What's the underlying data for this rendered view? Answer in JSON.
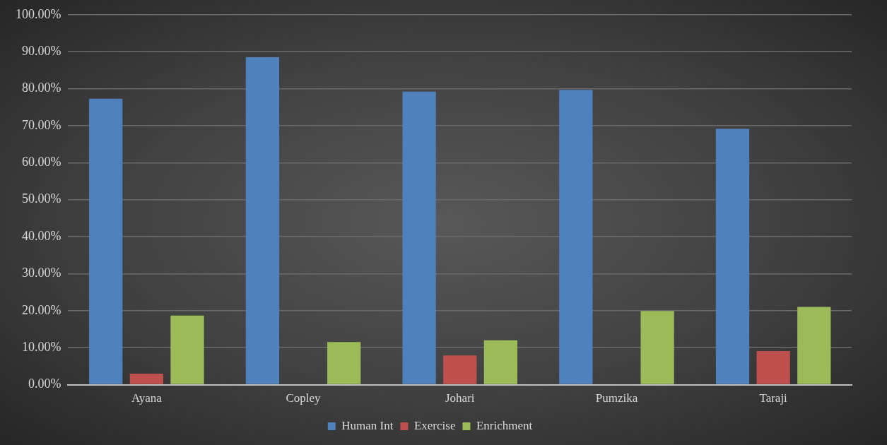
{
  "chart_data": {
    "type": "bar",
    "categories": [
      "Ayana",
      "Copley",
      "Johari",
      "Pumzika",
      "Taraji"
    ],
    "series": [
      {
        "name": "Human Int",
        "color": "#4f81bd",
        "values": [
          77.3,
          88.5,
          79.2,
          79.7,
          69.2
        ]
      },
      {
        "name": "Exercise",
        "color": "#c0504d",
        "values": [
          3.0,
          0,
          7.9,
          0,
          9.1
        ]
      },
      {
        "name": "Enrichment",
        "color": "#9bbb59",
        "values": [
          18.7,
          11.5,
          12.0,
          19.9,
          21.0
        ]
      }
    ],
    "ylim": [
      0,
      100
    ],
    "yticks": [
      {
        "value": 0,
        "label": "0.00%"
      },
      {
        "value": 10,
        "label": "10.00%"
      },
      {
        "value": 20,
        "label": "20.00%"
      },
      {
        "value": 30,
        "label": "30.00%"
      },
      {
        "value": 40,
        "label": "40.00%"
      },
      {
        "value": 50,
        "label": "50.00%"
      },
      {
        "value": 60,
        "label": "60.00%"
      },
      {
        "value": 70,
        "label": "70.00%"
      },
      {
        "value": 80,
        "label": "80.00%"
      },
      {
        "value": 90,
        "label": "90.00%"
      },
      {
        "value": 100,
        "label": "100.00%"
      }
    ],
    "grid": "y",
    "legend": "bottom"
  }
}
